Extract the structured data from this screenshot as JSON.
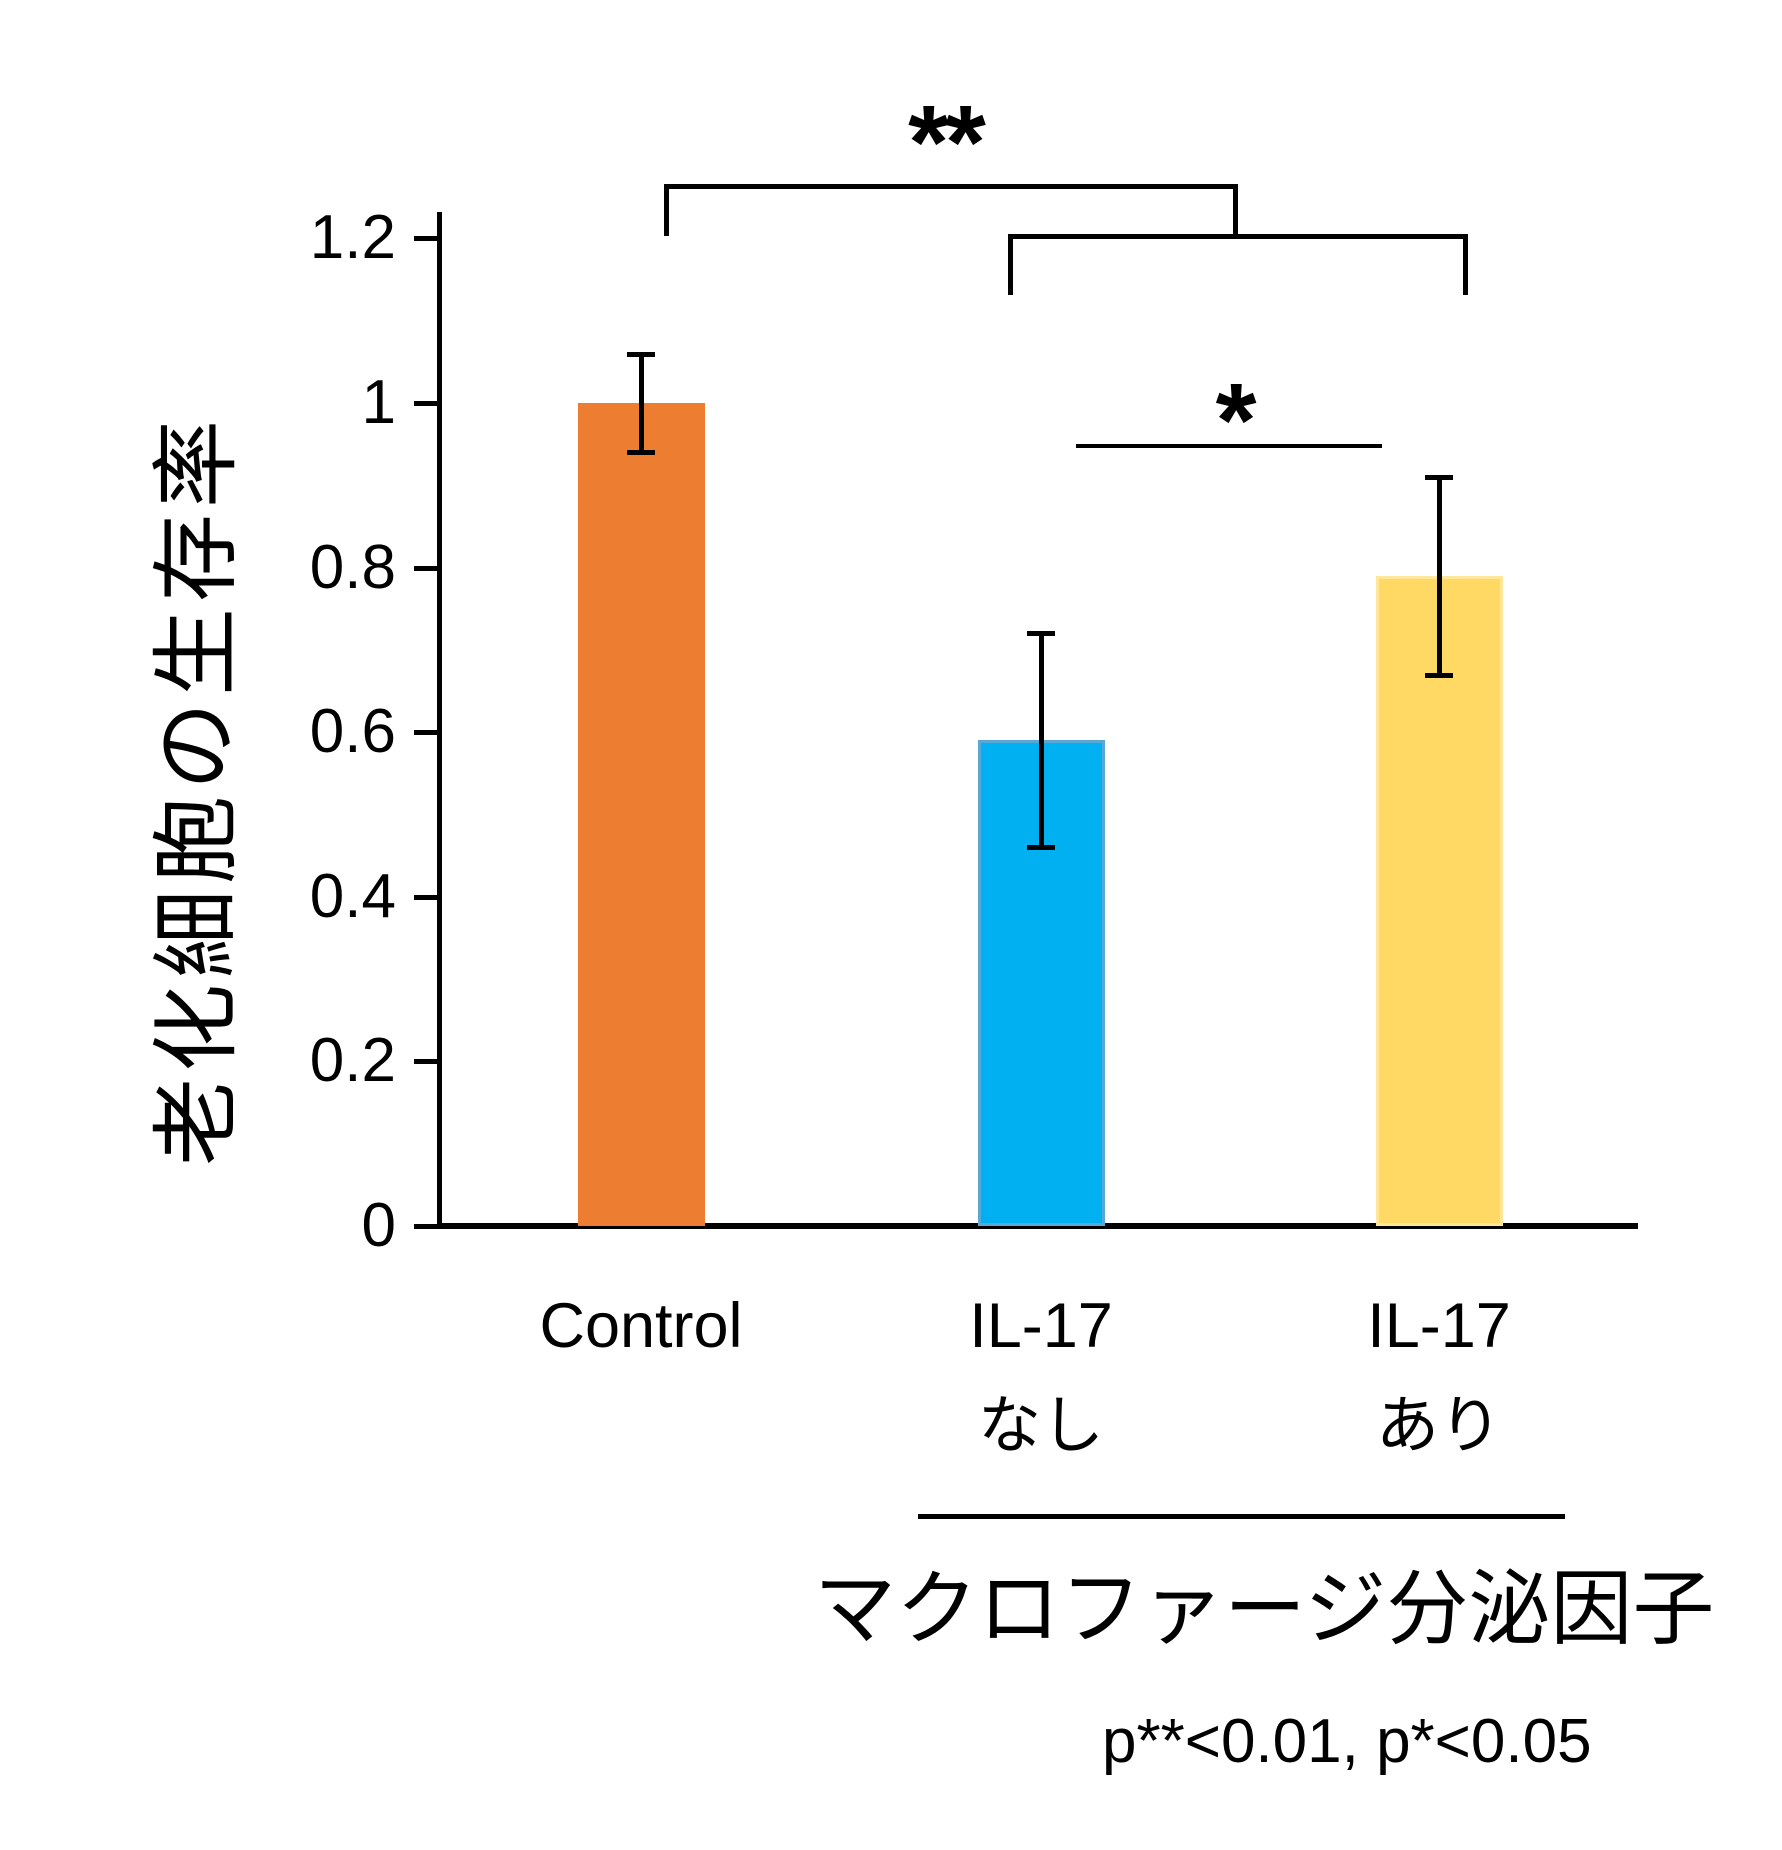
{
  "chart_data": {
    "type": "bar",
    "title": "",
    "ylabel": "老化細胞の生存率",
    "xlabel": "",
    "ylim": [
      0,
      1.2
    ],
    "ytick_values": [
      0,
      0.2,
      0.4,
      0.6,
      0.8,
      1,
      1.2
    ],
    "ytick_labels": [
      "0",
      "0.2",
      "0.4",
      "0.6",
      "0.8",
      "1",
      "1.2"
    ],
    "categories": [
      "Control",
      "IL-17 なし",
      "IL-17 あり"
    ],
    "x_labels": [
      [
        "Control"
      ],
      [
        "IL-17",
        "なし"
      ],
      [
        "IL-17",
        "あり"
      ]
    ],
    "values": [
      1.0,
      0.59,
      0.79
    ],
    "errors": [
      0.06,
      0.13,
      0.12
    ],
    "bar_colors": [
      "#ED7D31",
      "#00B0F0",
      "#FFD964"
    ],
    "bar_edge_colors": [
      "#ED7D31",
      "#58A7D4",
      "#FFE699"
    ],
    "grid": false,
    "legend": false,
    "group_label": "マクロファージ分泌因子",
    "group_members": [
      "IL-17 なし",
      "IL-17 あり"
    ],
    "significance": [
      {
        "symbol": "**",
        "compares": [
          "Control",
          "IL-17 なし + IL-17 あり"
        ],
        "p": "p**<0.01"
      },
      {
        "symbol": "*",
        "compares": [
          "IL-17 なし",
          "IL-17 あり"
        ],
        "p": "p*<0.05"
      }
    ],
    "footnote": "p**<0.01, p*<0.05"
  }
}
